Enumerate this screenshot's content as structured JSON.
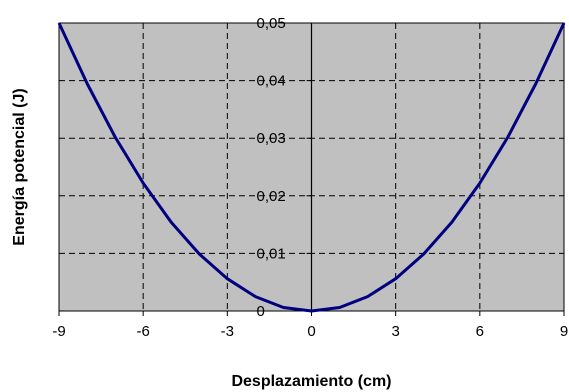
{
  "chart_data": {
    "type": "line",
    "title": "",
    "xlabel": "Desplazamiento (cm)",
    "ylabel": "Energía potencial (J)",
    "xlim": [
      -9,
      9
    ],
    "ylim": [
      0,
      0.05
    ],
    "xticks": [
      -9,
      -6,
      -3,
      0,
      3,
      6,
      9
    ],
    "xtick_labels": [
      "-9",
      "-6",
      "-3",
      "0",
      "3",
      "6",
      "9"
    ],
    "yticks": [
      0,
      0.01,
      0.02,
      0.03,
      0.04,
      0.05
    ],
    "ytick_labels": [
      "0",
      "0,01",
      "0,02",
      "0,03",
      "0,04",
      "0,05"
    ],
    "grid": true,
    "plot_background": "#c0c0c0",
    "series": [
      {
        "color": "#000080",
        "x": [
          -9,
          -8,
          -7,
          -6,
          -5,
          -4,
          -3,
          -2,
          -1,
          0,
          1,
          2,
          3,
          4,
          5,
          6,
          7,
          8,
          9
        ],
        "y": [
          0.05,
          0.0395,
          0.0302,
          0.0222,
          0.0154,
          0.0099,
          0.0056,
          0.0025,
          0.0006,
          0,
          0.0006,
          0.0025,
          0.0056,
          0.0099,
          0.0154,
          0.0222,
          0.0302,
          0.0395,
          0.05
        ]
      }
    ]
  }
}
